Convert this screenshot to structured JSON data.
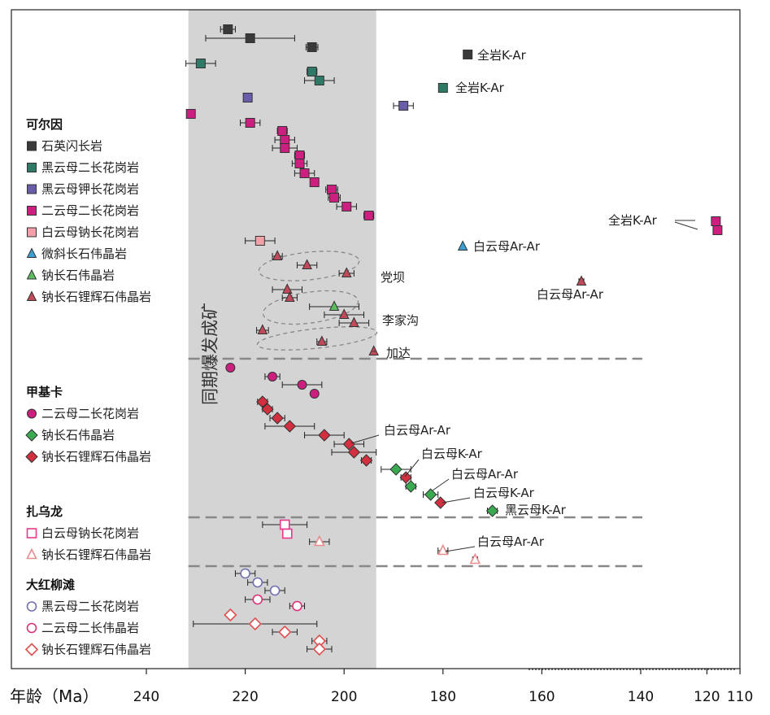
{
  "chart_data": {
    "type": "scatter",
    "xlabel": "年龄（Ma）",
    "x_ticks": [
      240,
      220,
      200,
      180,
      160,
      140,
      120,
      110
    ],
    "band_label": "同期爆发成矿",
    "band_range": [
      231.5,
      193.5
    ],
    "colors": {
      "qmd": "#3a3a3a",
      "biot": "#2e7a66",
      "biok": "#6a5ca8",
      "two": "#cc1f80",
      "mus_open": "#f0a0a8",
      "mic": "#3aa0d0",
      "alb": "#5dbb60",
      "spod": "#c04a5a",
      "jjk_two": "#cc1f80",
      "jjk_alb": "#3aaa50",
      "jjk_spod": "#d22f3f",
      "zwl_mus": "#e8388a",
      "zwl_spod": "#e88c8c",
      "dh_bio": "#7070b0",
      "dh_two": "#e0307a",
      "dh_spod": "#e05050"
    },
    "groups": [
      {
        "title": "可尔因",
        "legend": [
          {
            "label": "石英闪长岩",
            "key": "qmd",
            "shape": "square",
            "fill": true
          },
          {
            "label": "黑云母二长花岗岩",
            "key": "biot",
            "shape": "square",
            "fill": true
          },
          {
            "label": "黑云母钾长花岗岩",
            "key": "biok",
            "shape": "square",
            "fill": true
          },
          {
            "label": "二云母二长花岗岩",
            "key": "two",
            "shape": "square",
            "fill": true
          },
          {
            "label": "白云母钠长花岗岩",
            "key": "mus_open",
            "shape": "square",
            "fill": true
          },
          {
            "label": "微斜长石伟晶岩",
            "key": "mic",
            "shape": "triangle",
            "fill": true
          },
          {
            "label": "钠长石伟晶岩",
            "key": "alb",
            "shape": "triangle",
            "fill": true
          },
          {
            "label": "钠长石锂辉石伟晶岩",
            "key": "spod",
            "shape": "triangle",
            "fill": true
          }
        ]
      },
      {
        "title": "甲基卡",
        "legend": [
          {
            "label": "二云母二长花岗岩",
            "key": "jjk_two",
            "shape": "circle",
            "fill": true
          },
          {
            "label": "钠长石伟晶岩",
            "key": "jjk_alb",
            "shape": "diamond",
            "fill": true
          },
          {
            "label": "钠长石锂辉石伟晶岩",
            "key": "jjk_spod",
            "shape": "diamond",
            "fill": true
          }
        ]
      },
      {
        "title": "扎乌龙",
        "legend": [
          {
            "label": "白云母钠长花岗岩",
            "key": "zwl_mus",
            "shape": "square",
            "fill": false
          },
          {
            "label": "钠长石锂辉石伟晶岩",
            "key": "zwl_spod",
            "shape": "triangle",
            "fill": false
          }
        ]
      },
      {
        "title": "大红柳滩",
        "legend": [
          {
            "label": "黑云母二长花岗岩",
            "key": "dh_bio",
            "shape": "circle",
            "fill": false
          },
          {
            "label": "二云母二长伟晶岩",
            "key": "dh_two",
            "shape": "circle",
            "fill": false
          },
          {
            "label": "钠长石锂辉石伟晶岩",
            "key": "dh_spod",
            "shape": "diamond",
            "fill": false
          }
        ]
      }
    ],
    "points": [
      {
        "age": 223.5,
        "err": 1.5,
        "key": "qmd",
        "shape": "square",
        "fill": true
      },
      {
        "age": 219,
        "err": 9,
        "key": "qmd",
        "shape": "square",
        "fill": true
      },
      {
        "age": 206.5,
        "err": 1.2,
        "key": "qmd",
        "shape": "square",
        "fill": true
      },
      {
        "age": 175,
        "err": 0,
        "key": "qmd",
        "shape": "square",
        "fill": true
      },
      {
        "age": 229,
        "err": 3,
        "key": "biot",
        "shape": "square",
        "fill": true
      },
      {
        "age": 206.5,
        "err": 1,
        "key": "biot",
        "shape": "square",
        "fill": true
      },
      {
        "age": 205,
        "err": 3,
        "key": "biot",
        "shape": "square",
        "fill": true
      },
      {
        "age": 180,
        "err": 0,
        "key": "biot",
        "shape": "square",
        "fill": true
      },
      {
        "age": 219.5,
        "err": 0,
        "key": "biok",
        "shape": "square",
        "fill": true
      },
      {
        "age": 188,
        "err": 2,
        "key": "biok",
        "shape": "square",
        "fill": true
      },
      {
        "age": 231,
        "err": 0,
        "key": "two",
        "shape": "square",
        "fill": true
      },
      {
        "age": 219,
        "err": 2,
        "key": "two",
        "shape": "square",
        "fill": true
      },
      {
        "age": 212.5,
        "err": 1,
        "key": "two",
        "shape": "square",
        "fill": true
      },
      {
        "age": 212,
        "err": 2,
        "key": "two",
        "shape": "square",
        "fill": true
      },
      {
        "age": 212,
        "err": 2.5,
        "key": "two",
        "shape": "square",
        "fill": true
      },
      {
        "age": 209,
        "err": 1,
        "key": "two",
        "shape": "square",
        "fill": true
      },
      {
        "age": 209,
        "err": 1.5,
        "key": "two",
        "shape": "square",
        "fill": true
      },
      {
        "age": 208,
        "err": 2,
        "key": "two",
        "shape": "square",
        "fill": true
      },
      {
        "age": 206,
        "err": 0,
        "key": "two",
        "shape": "square",
        "fill": true
      },
      {
        "age": 202.5,
        "err": 1.2,
        "key": "two",
        "shape": "square",
        "fill": true
      },
      {
        "age": 202,
        "err": 1.2,
        "key": "two",
        "shape": "square",
        "fill": true
      },
      {
        "age": 199.5,
        "err": 2,
        "key": "two",
        "shape": "square",
        "fill": true
      },
      {
        "age": 195,
        "err": 1,
        "key": "two",
        "shape": "square",
        "fill": true
      },
      {
        "age": 117.3,
        "err": 0,
        "key": "two",
        "shape": "square",
        "fill": true
      },
      {
        "age": 116.8,
        "err": 0,
        "key": "two",
        "shape": "square",
        "fill": true
      },
      {
        "age": 217,
        "err": 3,
        "key": "mus_open",
        "shape": "square",
        "fill": true
      },
      {
        "age": 176,
        "err": 0,
        "key": "mic",
        "shape": "triangle",
        "fill": true
      },
      {
        "age": 213.5,
        "err": 1,
        "key": "spod",
        "shape": "triangle",
        "fill": true
      },
      {
        "age": 207.5,
        "err": 2,
        "key": "spod",
        "shape": "triangle",
        "fill": true
      },
      {
        "age": 199.5,
        "err": 1.5,
        "key": "spod",
        "shape": "triangle",
        "fill": true
      },
      {
        "age": 152,
        "err": 0.5,
        "key": "spod",
        "shape": "triangle",
        "fill": true
      },
      {
        "age": 211.5,
        "err": 3,
        "key": "spod",
        "shape": "triangle",
        "fill": true
      },
      {
        "age": 211,
        "err": 1.5,
        "key": "spod",
        "shape": "triangle",
        "fill": true
      },
      {
        "age": 202,
        "err": 5,
        "key": "alb",
        "shape": "triangle",
        "fill": true
      },
      {
        "age": 200,
        "err": 4,
        "key": "spod",
        "shape": "triangle",
        "fill": true
      },
      {
        "age": 198,
        "err": 3,
        "key": "spod",
        "shape": "triangle",
        "fill": true
      },
      {
        "age": 216.5,
        "err": 1.2,
        "key": "spod",
        "shape": "triangle",
        "fill": true
      },
      {
        "age": 204.5,
        "err": 1,
        "key": "spod",
        "shape": "triangle",
        "fill": true
      },
      {
        "age": 194,
        "err": 0,
        "key": "spod",
        "shape": "triangle",
        "fill": true
      },
      {
        "age": 223,
        "err": 0,
        "key": "jjk_two",
        "shape": "circle",
        "fill": true
      },
      {
        "age": 214.5,
        "err": 1.5,
        "key": "jjk_two",
        "shape": "circle",
        "fill": true
      },
      {
        "age": 208.5,
        "err": 4,
        "key": "jjk_two",
        "shape": "circle",
        "fill": true
      },
      {
        "age": 206,
        "err": 0,
        "key": "jjk_two",
        "shape": "circle",
        "fill": true
      },
      {
        "age": 216.5,
        "err": 1,
        "key": "jjk_spod",
        "shape": "diamond",
        "fill": true
      },
      {
        "age": 215.5,
        "err": 1,
        "key": "jjk_spod",
        "shape": "diamond",
        "fill": true
      },
      {
        "age": 213.5,
        "err": 1.5,
        "key": "jjk_spod",
        "shape": "diamond",
        "fill": true
      },
      {
        "age": 211,
        "err": 5,
        "key": "jjk_spod",
        "shape": "diamond",
        "fill": true
      },
      {
        "age": 204,
        "err": 4,
        "key": "jjk_spod",
        "shape": "diamond",
        "fill": true
      },
      {
        "age": 199,
        "err": 3,
        "key": "jjk_spod",
        "shape": "diamond",
        "fill": true
      },
      {
        "age": 198,
        "err": 4.5,
        "key": "jjk_spod",
        "shape": "diamond",
        "fill": true
      },
      {
        "age": 195.5,
        "err": 1,
        "key": "jjk_spod",
        "shape": "diamond",
        "fill": true
      },
      {
        "age": 189.5,
        "err": 3,
        "key": "jjk_alb",
        "shape": "diamond",
        "fill": true
      },
      {
        "age": 187.5,
        "err": 1,
        "key": "jjk_spod",
        "shape": "diamond",
        "fill": true
      },
      {
        "age": 186.5,
        "err": 1,
        "key": "jjk_alb",
        "shape": "diamond",
        "fill": true
      },
      {
        "age": 182.5,
        "err": 1.5,
        "key": "jjk_alb",
        "shape": "diamond",
        "fill": true
      },
      {
        "age": 180.5,
        "err": 0,
        "key": "jjk_spod",
        "shape": "diamond",
        "fill": true
      },
      {
        "age": 170,
        "err": 1,
        "key": "jjk_alb",
        "shape": "diamond",
        "fill": true
      },
      {
        "age": 212,
        "err": 4.5,
        "key": "zwl_mus",
        "shape": "square",
        "fill": false
      },
      {
        "age": 211.5,
        "err": 0,
        "key": "zwl_mus",
        "shape": "square",
        "fill": false
      },
      {
        "age": 205,
        "err": 2,
        "key": "zwl_spod",
        "shape": "triangle",
        "fill": false
      },
      {
        "age": 180,
        "err": 1,
        "key": "zwl_spod",
        "shape": "triangle",
        "fill": false
      },
      {
        "age": 173.5,
        "err": 0.5,
        "key": "zwl_spod",
        "shape": "triangle",
        "fill": false
      },
      {
        "age": 220,
        "err": 2,
        "key": "dh_bio",
        "shape": "circle",
        "fill": false
      },
      {
        "age": 217.5,
        "err": 2,
        "key": "dh_bio",
        "shape": "circle",
        "fill": false
      },
      {
        "age": 214,
        "err": 2,
        "key": "dh_bio",
        "shape": "circle",
        "fill": false
      },
      {
        "age": 217.5,
        "err": 2.5,
        "key": "dh_two",
        "shape": "circle",
        "fill": false
      },
      {
        "age": 209.5,
        "err": 1.5,
        "key": "dh_two",
        "shape": "circle",
        "fill": false
      },
      {
        "age": 223,
        "err": 0,
        "key": "dh_spod",
        "shape": "diamond",
        "fill": false
      },
      {
        "age": 218,
        "err": 12.5,
        "key": "dh_spod",
        "shape": "diamond",
        "fill": false
      },
      {
        "age": 212,
        "err": 2.5,
        "key": "dh_spod",
        "shape": "diamond",
        "fill": false
      },
      {
        "age": 205,
        "err": 1.5,
        "key": "dh_spod",
        "shape": "diamond",
        "fill": false
      },
      {
        "age": 205,
        "err": 2.5,
        "key": "dh_spod",
        "shape": "diamond",
        "fill": false
      }
    ],
    "annotations": [
      "全岩K-Ar",
      "全岩K-Ar",
      "全岩K-Ar",
      "白云母Ar-Ar",
      "党坝",
      "白云母Ar-Ar",
      "李家沟",
      "加达",
      "白云母Ar-Ar",
      "白云母K-Ar",
      "白云母Ar-Ar",
      "白云母K-Ar",
      "黑云母K-Ar",
      "白云母Ar-Ar"
    ]
  }
}
